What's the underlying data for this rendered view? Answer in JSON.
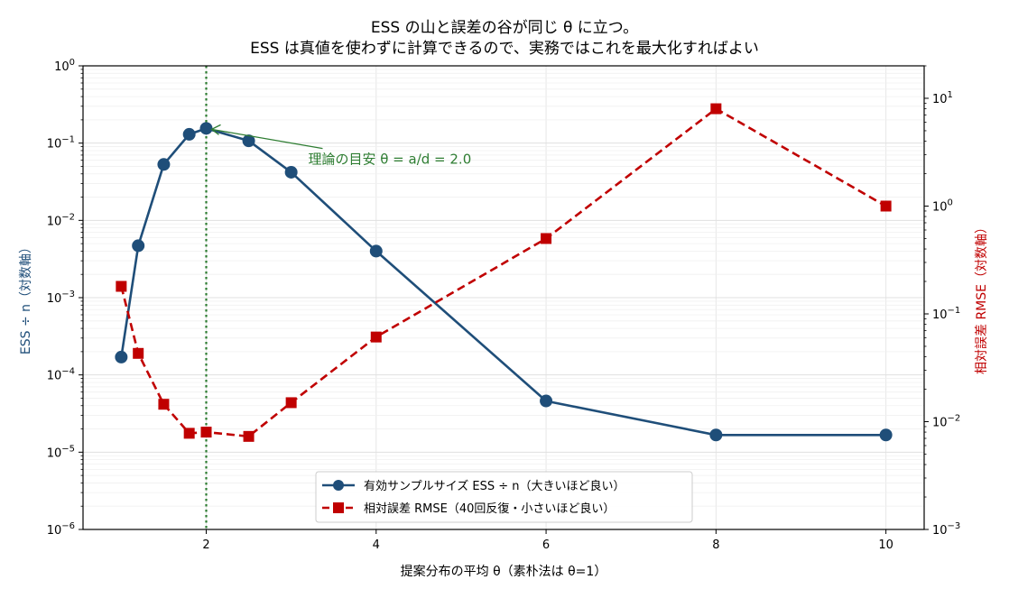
{
  "chart_data": {
    "type": "line",
    "title": [
      "ESS の山と誤差の谷が同じ θ に立つ。",
      "ESS は真値を使わずに計算できるので、実務ではこれを最大化すればよい"
    ],
    "xlabel": "提案分布の平均 θ（素朴法は θ=1）",
    "ylabel_left": "ESS ÷ n（対数軸）",
    "ylabel_right": "相対誤差 RMSE（対数軸）",
    "xlim": [
      0.55,
      10.45
    ],
    "xticks": [
      2,
      4,
      6,
      8,
      10
    ],
    "ylim_left": [
      1e-06,
      1
    ],
    "ylim_right": [
      0.001,
      20
    ],
    "yscale": "log",
    "yticks_left": [
      {
        "base": "10",
        "exp": "0"
      },
      {
        "base": "10",
        "exp": "−1"
      },
      {
        "base": "10",
        "exp": "−2"
      },
      {
        "base": "10",
        "exp": "−3"
      },
      {
        "base": "10",
        "exp": "−4"
      },
      {
        "base": "10",
        "exp": "−5"
      },
      {
        "base": "10",
        "exp": "−6"
      }
    ],
    "yticks_left_values": [
      1,
      0.1,
      0.01,
      0.001,
      0.0001,
      1e-05,
      1e-06
    ],
    "yticks_right": [
      {
        "base": "10",
        "exp": "1"
      },
      {
        "base": "10",
        "exp": "0"
      },
      {
        "base": "10",
        "exp": "−1"
      },
      {
        "base": "10",
        "exp": "−2"
      },
      {
        "base": "10",
        "exp": "−3"
      }
    ],
    "yticks_right_values": [
      10,
      1,
      0.1,
      0.01,
      0.001
    ],
    "grid": true,
    "legend_position": "bottom-center",
    "series": [
      {
        "name": "有効サンプルサイズ ESS ÷ n（大きいほど良い）",
        "axis": "left",
        "color": "#1f4e79",
        "marker": "circle",
        "linestyle": "solid",
        "x": [
          1.0,
          1.2,
          1.5,
          1.8,
          2.0,
          2.5,
          3.0,
          4.0,
          6.0,
          8.0,
          10.0
        ],
        "y": [
          0.00017,
          0.0047,
          0.053,
          0.13,
          0.155,
          0.107,
          0.042,
          0.004,
          4.6e-05,
          1.67e-05,
          1.67e-05
        ]
      },
      {
        "name": "相対誤差 RMSE（40回反復・小さいほど良い）",
        "axis": "right",
        "color": "#c00000",
        "marker": "square",
        "linestyle": "dashed",
        "x": [
          1.0,
          1.2,
          1.5,
          1.8,
          2.0,
          2.5,
          3.0,
          4.0,
          6.0,
          8.0,
          10.0
        ],
        "y": [
          0.18,
          0.043,
          0.0145,
          0.0078,
          0.008,
          0.0073,
          0.015,
          0.061,
          0.5,
          8.0,
          1.0
        ]
      }
    ],
    "vline": {
      "x": 2.0,
      "color": "#2e7d32",
      "style": "dotted"
    },
    "annotation": {
      "text": "理論の目安 θ = a/d = 2.0",
      "target_x": 2.0,
      "target_y": 0.155,
      "text_x": 3.2,
      "text_y": 0.06,
      "color": "#2e7d32"
    }
  }
}
